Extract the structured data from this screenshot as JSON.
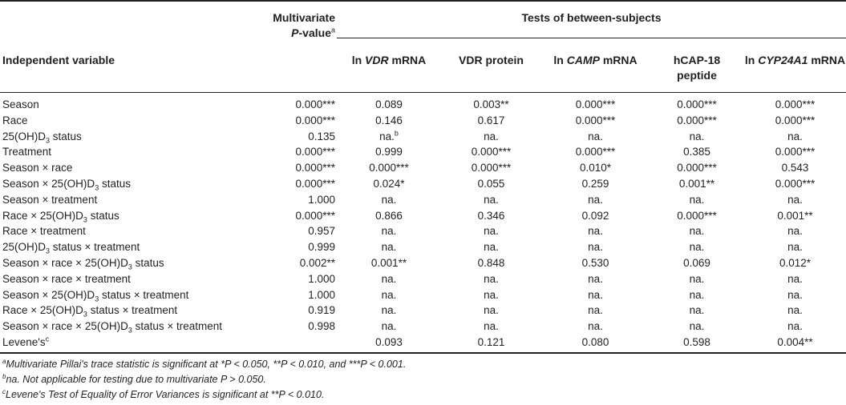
{
  "header": {
    "multivariate_line1": "Multivariate",
    "multivariate_p": "P",
    "multivariate_rest": "-value",
    "multivariate_sup": "a",
    "group_title": "Tests of between-subjects",
    "independent_variable": "Independent variable",
    "columns": [
      {
        "pre": "ln ",
        "ital": "VDR",
        "post": " mRNA"
      },
      {
        "pre": "VDR protein",
        "ital": "",
        "post": ""
      },
      {
        "pre": "ln ",
        "ital": "CAMP",
        "post": " mRNA"
      },
      {
        "pre": "hCAP-18",
        "ital": "",
        "post": "",
        "line2": "peptide"
      },
      {
        "pre": "ln ",
        "ital": "CYP24A1",
        "post": " mRNA"
      }
    ]
  },
  "rows": [
    {
      "var_pre": "Season",
      "var_sub": "",
      "var_post": "",
      "mv": "0.000***",
      "vals": [
        "0.089",
        "0.003**",
        "0.000***",
        "0.000***",
        "0.000***"
      ]
    },
    {
      "var_pre": "Race",
      "var_sub": "",
      "var_post": "",
      "mv": "0.000***",
      "vals": [
        "0.146",
        "0.617",
        "0.000***",
        "0.000***",
        "0.000***"
      ]
    },
    {
      "var_pre": "25(OH)D",
      "var_sub": "3",
      "var_post": " status",
      "mv": "0.135",
      "vals": [
        "na.",
        "na.",
        "na.",
        "na.",
        "na."
      ],
      "first_sup": "b"
    },
    {
      "var_pre": "Treatment",
      "var_sub": "",
      "var_post": "",
      "mv": "0.000***",
      "vals": [
        "0.999",
        "0.000***",
        "0.000***",
        "0.385",
        "0.000***"
      ]
    },
    {
      "var_pre": "Season × race",
      "var_sub": "",
      "var_post": "",
      "mv": "0.000***",
      "vals": [
        "0.000***",
        "0.000***",
        "0.010*",
        "0.000***",
        "0.543"
      ]
    },
    {
      "var_pre": "Season × 25(OH)D",
      "var_sub": "3",
      "var_post": " status",
      "mv": "0.000***",
      "vals": [
        "0.024*",
        "0.055",
        "0.259",
        "0.001**",
        "0.000***"
      ]
    },
    {
      "var_pre": "Season × treatment",
      "var_sub": "",
      "var_post": "",
      "mv": "1.000",
      "vals": [
        "na.",
        "na.",
        "na.",
        "na.",
        "na."
      ]
    },
    {
      "var_pre": "Race × 25(OH)D",
      "var_sub": "3",
      "var_post": " status",
      "mv": "0.000***",
      "vals": [
        "0.866",
        "0.346",
        "0.092",
        "0.000***",
        "0.001**"
      ]
    },
    {
      "var_pre": "Race × treatment",
      "var_sub": "",
      "var_post": "",
      "mv": "0.957",
      "vals": [
        "na.",
        "na.",
        "na.",
        "na.",
        "na."
      ]
    },
    {
      "var_pre": "25(OH)D",
      "var_sub": "3",
      "var_post": " status × treatment",
      "mv": "0.999",
      "vals": [
        "na.",
        "na.",
        "na.",
        "na.",
        "na."
      ]
    },
    {
      "var_pre": "Season × race × 25(OH)D",
      "var_sub": "3",
      "var_post": " status",
      "mv": "0.002**",
      "vals": [
        "0.001**",
        "0.848",
        "0.530",
        "0.069",
        "0.012*"
      ]
    },
    {
      "var_pre": "Season × race × treatment",
      "var_sub": "",
      "var_post": "",
      "mv": "1.000",
      "vals": [
        "na.",
        "na.",
        "na.",
        "na.",
        "na."
      ]
    },
    {
      "var_pre": "Season × 25(OH)D",
      "var_sub": "3",
      "var_post": " status × treatment",
      "mv": "1.000",
      "vals": [
        "na.",
        "na.",
        "na.",
        "na.",
        "na."
      ]
    },
    {
      "var_pre": "Race × 25(OH)D",
      "var_sub": "3",
      "var_post": " status × treatment",
      "mv": "0.919",
      "vals": [
        "na.",
        "na.",
        "na.",
        "na.",
        "na."
      ]
    },
    {
      "var_pre": "Season × race × 25(OH)D",
      "var_sub": "3",
      "var_post": " status × treatment",
      "mv": "0.998",
      "vals": [
        "na.",
        "na.",
        "na.",
        "na.",
        "na."
      ]
    },
    {
      "var_pre": "Levene's",
      "var_sub": "",
      "var_post": "",
      "var_sup": "c",
      "mv": "",
      "vals": [
        "0.093",
        "0.121",
        "0.080",
        "0.598",
        "0.004**"
      ]
    }
  ],
  "footnotes": [
    {
      "sup": "a",
      "text": "Multivariate Pillai's trace statistic is significant at *P < 0.050, **P < 0.010, and ***P < 0.001."
    },
    {
      "sup": "b",
      "text": "na. Not applicable for testing due to multivariate P > 0.050."
    },
    {
      "sup": "c",
      "text": "Levene's Test of Equality of Error Variances is significant at **P < 0.010."
    }
  ]
}
